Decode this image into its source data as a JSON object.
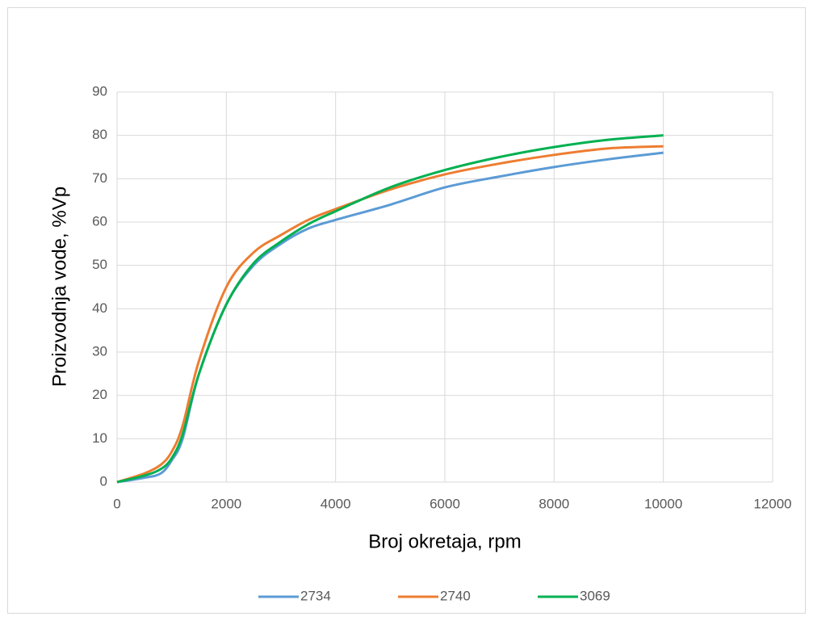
{
  "chart_data": {
    "type": "line",
    "x_label": "Broj okretaja, rpm",
    "y_label": "Proizvodnja vode, %Vp",
    "x": [
      0,
      500,
      800,
      1000,
      1200,
      1500,
      2000,
      2500,
      3000,
      3500,
      4000,
      5000,
      6000,
      7000,
      8000,
      9000,
      10000
    ],
    "series": [
      {
        "name": "2734",
        "color": "#5b9bd5",
        "values": [
          0,
          1,
          2,
          5,
          10,
          25,
          41,
          50,
          55,
          58.5,
          60.5,
          64,
          68,
          70.5,
          72.7,
          74.5,
          76
        ]
      },
      {
        "name": "2740",
        "color": "#ed7d31",
        "values": [
          0,
          2,
          4,
          7,
          13,
          28,
          45,
          53,
          57,
          60.5,
          63,
          67.5,
          71,
          73.5,
          75.5,
          77,
          77.5
        ]
      },
      {
        "name": "3069",
        "color": "#00b050",
        "values": [
          0,
          1.5,
          3,
          5.5,
          11,
          25,
          41,
          50.5,
          55.5,
          59.5,
          62.5,
          68,
          72,
          75,
          77.3,
          79,
          80
        ]
      }
    ],
    "xlim": [
      0,
      12000
    ],
    "xticks": [
      0,
      2000,
      4000,
      6000,
      8000,
      10000,
      12000
    ],
    "ylim": [
      0,
      90
    ],
    "yticks": [
      0,
      10,
      20,
      30,
      40,
      50,
      60,
      70,
      80,
      90
    ],
    "grid": true,
    "legend": "bottom"
  }
}
